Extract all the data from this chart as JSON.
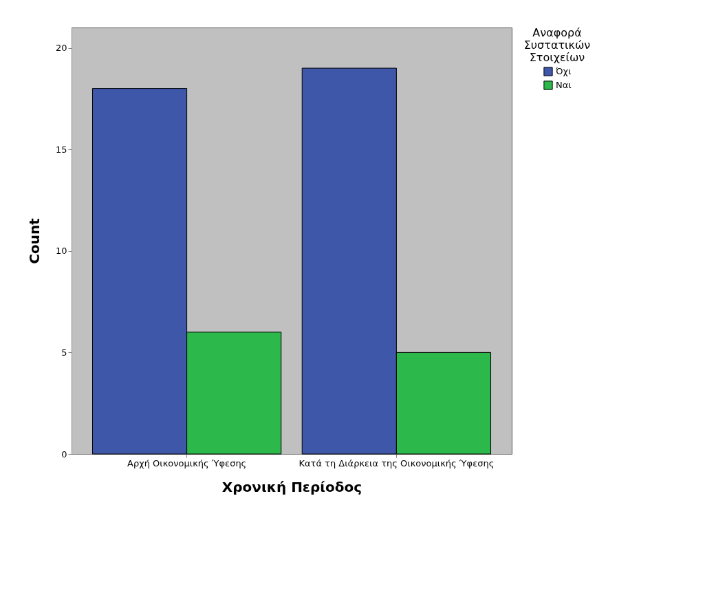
{
  "chart_data": {
    "type": "bar",
    "xlabel": "Χρονική Περίοδος",
    "ylabel": "Count",
    "legend_title": "Αναφορά Συστατικών Στοιχείων",
    "categories": [
      "Αρχή Οικονομικής Ύφεσης",
      "Κατά τη Διάρκεια της Οικονομικής Ύφεσης"
    ],
    "series": [
      {
        "name": "Όχι",
        "color": "#3f57a9",
        "values": [
          18,
          19
        ]
      },
      {
        "name": "Ναι",
        "color": "#2db84b",
        "values": [
          6,
          5
        ]
      }
    ],
    "ylim": [
      0,
      21
    ],
    "yticks": [
      0,
      5,
      10,
      15,
      20
    ],
    "grid": false,
    "legend": "top right"
  }
}
